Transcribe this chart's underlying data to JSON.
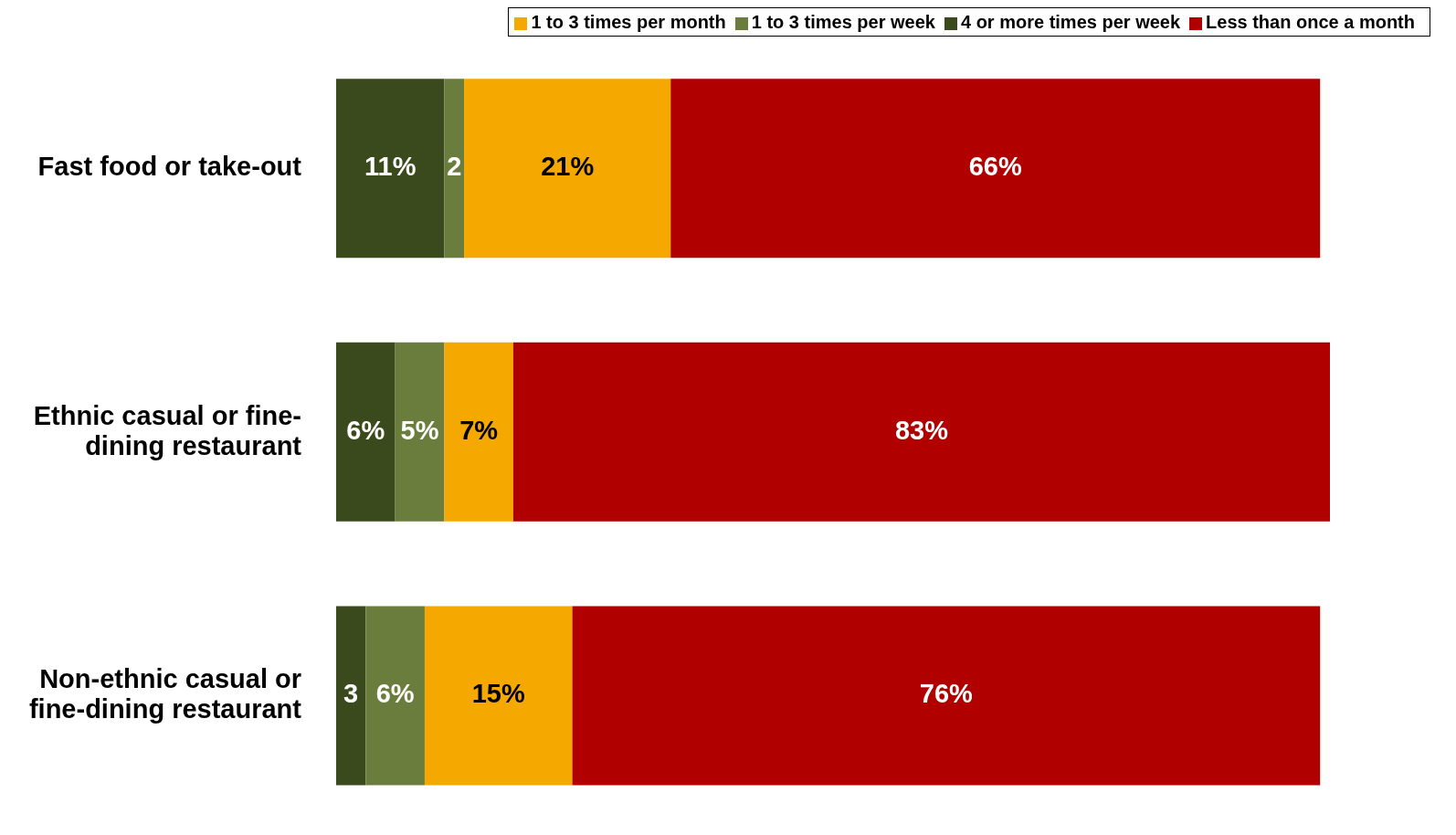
{
  "chart_data": {
    "type": "bar",
    "orientation": "horizontal",
    "stacked": true,
    "categories": [
      "Fast food or take-out",
      "Ethnic casual or fine-dining restaurant",
      "Non-ethnic casual or fine-dining restaurant"
    ],
    "series": [
      {
        "name": "4 or more times per week",
        "color": "#3b4a1c",
        "values": [
          11,
          6,
          3
        ],
        "value_labels": [
          "11%",
          "6%",
          "3"
        ]
      },
      {
        "name": "1 to 3 times per week",
        "color": "#6b7d3c",
        "values": [
          2,
          5,
          6
        ],
        "value_labels": [
          "2",
          "5%",
          "6%"
        ]
      },
      {
        "name": "1 to 3 times per month",
        "color": "#f5a800",
        "values": [
          21,
          7,
          15
        ],
        "value_labels": [
          "21%",
          "7%",
          "15%"
        ]
      },
      {
        "name": "Less than once a month",
        "color": "#b00000",
        "values": [
          66,
          83,
          76
        ],
        "value_labels": [
          "66%",
          "83%",
          "76%"
        ]
      }
    ],
    "legend": "top right",
    "grid": false
  }
}
